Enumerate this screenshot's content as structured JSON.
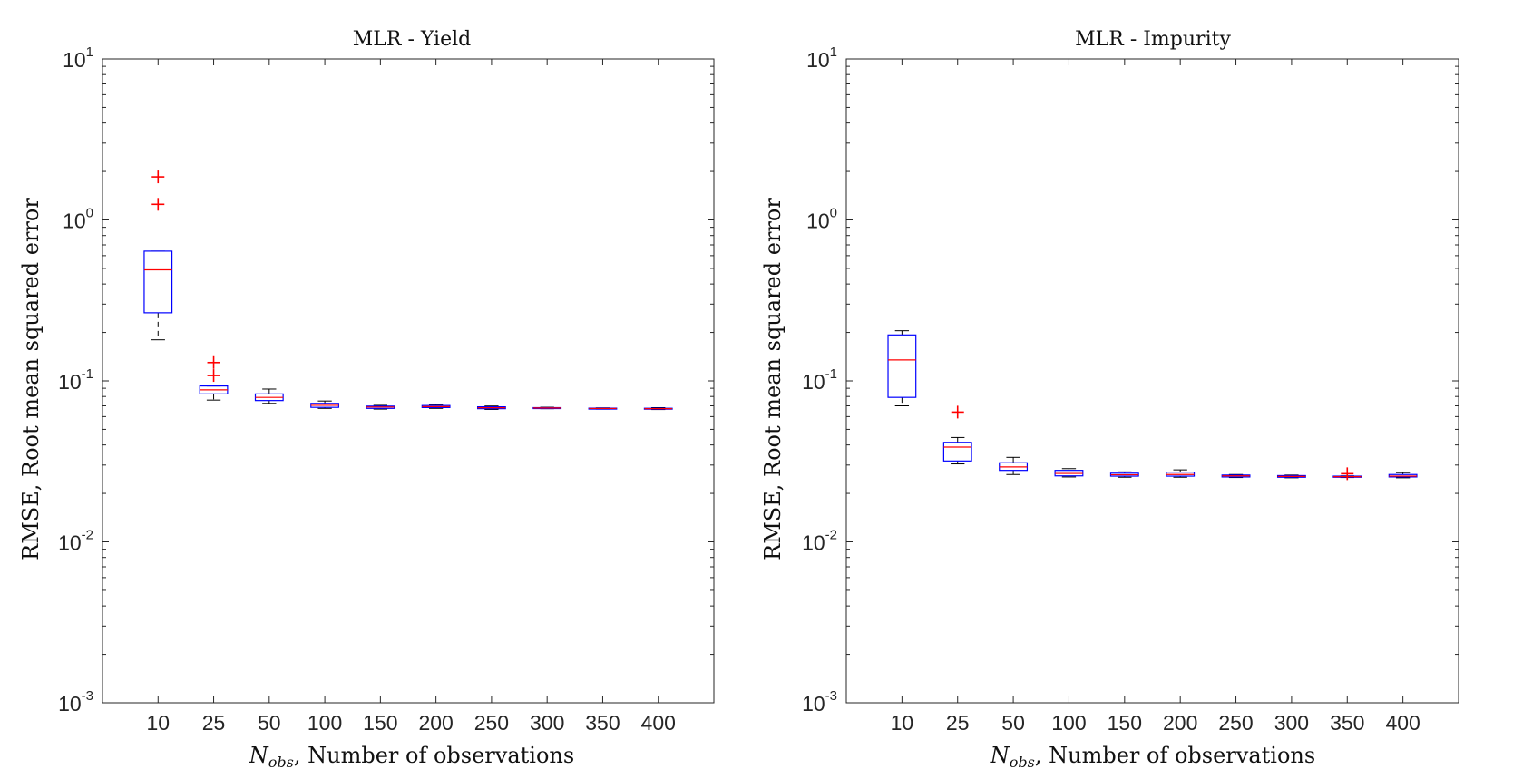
{
  "chart_data": [
    {
      "type": "box",
      "title": "MLR - Yield",
      "xlabel_symbol": "N",
      "xlabel_subscript": "obs",
      "xlabel_rest": ", Number of observations",
      "ylabel": "RMSE, Root mean squared error",
      "y_scale": "log",
      "ylim": [
        0.001,
        10
      ],
      "y_ticks": [
        {
          "base": "10",
          "exp": "-3"
        },
        {
          "base": "10",
          "exp": "-2"
        },
        {
          "base": "10",
          "exp": "-1"
        },
        {
          "base": "10",
          "exp": "0"
        },
        {
          "base": "10",
          "exp": "1"
        }
      ],
      "categories": [
        "10",
        "25",
        "50",
        "100",
        "150",
        "200",
        "250",
        "300",
        "350",
        "400"
      ],
      "boxes": [
        {
          "whisker_low": 0.18,
          "q1": 0.265,
          "median": 0.49,
          "q3": 0.64,
          "whisker_high": 0.64,
          "outliers": [
            1.85,
            1.25
          ]
        },
        {
          "whisker_low": 0.076,
          "q1": 0.083,
          "median": 0.088,
          "q3": 0.093,
          "whisker_high": 0.093,
          "outliers": [
            0.13,
            0.108
          ]
        },
        {
          "whisker_low": 0.0725,
          "q1": 0.0755,
          "median": 0.079,
          "q3": 0.083,
          "whisker_high": 0.089,
          "outliers": []
        },
        {
          "whisker_low": 0.0675,
          "q1": 0.0685,
          "median": 0.0705,
          "q3": 0.0725,
          "whisker_high": 0.075,
          "outliers": []
        },
        {
          "whisker_low": 0.0668,
          "q1": 0.0675,
          "median": 0.0688,
          "q3": 0.0697,
          "whisker_high": 0.0705,
          "outliers": []
        },
        {
          "whisker_low": 0.0675,
          "q1": 0.0683,
          "median": 0.0692,
          "q3": 0.0703,
          "whisker_high": 0.0712,
          "outliers": []
        },
        {
          "whisker_low": 0.0665,
          "q1": 0.0672,
          "median": 0.0681,
          "q3": 0.069,
          "whisker_high": 0.0698,
          "outliers": []
        },
        {
          "whisker_low": 0.0672,
          "q1": 0.0675,
          "median": 0.0679,
          "q3": 0.0682,
          "whisker_high": 0.0686,
          "outliers": []
        },
        {
          "whisker_low": 0.0668,
          "q1": 0.0671,
          "median": 0.0674,
          "q3": 0.0677,
          "whisker_high": 0.068,
          "outliers": []
        },
        {
          "whisker_low": 0.0664,
          "q1": 0.0668,
          "median": 0.0672,
          "q3": 0.0676,
          "whisker_high": 0.0682,
          "outliers": []
        }
      ]
    },
    {
      "type": "box",
      "title": "MLR - Impurity",
      "xlabel_symbol": "N",
      "xlabel_subscript": "obs",
      "xlabel_rest": ", Number of observations",
      "ylabel": "RMSE, Root mean squared error",
      "y_scale": "log",
      "ylim": [
        0.001,
        10
      ],
      "y_ticks": [
        {
          "base": "10",
          "exp": "-3"
        },
        {
          "base": "10",
          "exp": "-2"
        },
        {
          "base": "10",
          "exp": "-1"
        },
        {
          "base": "10",
          "exp": "0"
        },
        {
          "base": "10",
          "exp": "1"
        }
      ],
      "categories": [
        "10",
        "25",
        "50",
        "100",
        "150",
        "200",
        "250",
        "300",
        "350",
        "400"
      ],
      "boxes": [
        {
          "whisker_low": 0.07,
          "q1": 0.079,
          "median": 0.135,
          "q3": 0.193,
          "whisker_high": 0.205,
          "outliers": []
        },
        {
          "whisker_low": 0.0305,
          "q1": 0.0318,
          "median": 0.0388,
          "q3": 0.0415,
          "whisker_high": 0.0445,
          "outliers": [
            0.064
          ]
        },
        {
          "whisker_low": 0.0262,
          "q1": 0.0278,
          "median": 0.0292,
          "q3": 0.031,
          "whisker_high": 0.0335,
          "outliers": []
        },
        {
          "whisker_low": 0.0253,
          "q1": 0.0257,
          "median": 0.0266,
          "q3": 0.0278,
          "whisker_high": 0.0285,
          "outliers": []
        },
        {
          "whisker_low": 0.0252,
          "q1": 0.0256,
          "median": 0.0261,
          "q3": 0.0267,
          "whisker_high": 0.0272,
          "outliers": []
        },
        {
          "whisker_low": 0.0252,
          "q1": 0.0256,
          "median": 0.0262,
          "q3": 0.0271,
          "whisker_high": 0.028,
          "outliers": []
        },
        {
          "whisker_low": 0.0251,
          "q1": 0.0253,
          "median": 0.0257,
          "q3": 0.026,
          "whisker_high": 0.0262,
          "outliers": []
        },
        {
          "whisker_low": 0.025,
          "q1": 0.0252,
          "median": 0.0255,
          "q3": 0.0258,
          "whisker_high": 0.026,
          "outliers": []
        },
        {
          "whisker_low": 0.0251,
          "q1": 0.0252,
          "median": 0.0254,
          "q3": 0.0256,
          "whisker_high": 0.0257,
          "outliers": [
            0.0265
          ]
        },
        {
          "whisker_low": 0.025,
          "q1": 0.0253,
          "median": 0.0256,
          "q3": 0.0262,
          "whisker_high": 0.0269,
          "outliers": []
        }
      ]
    }
  ],
  "colors": {
    "box": "#0000ff",
    "median": "#ff0000",
    "whisker": "#000000",
    "outlier": "#ff0000",
    "axes": "#262626"
  }
}
